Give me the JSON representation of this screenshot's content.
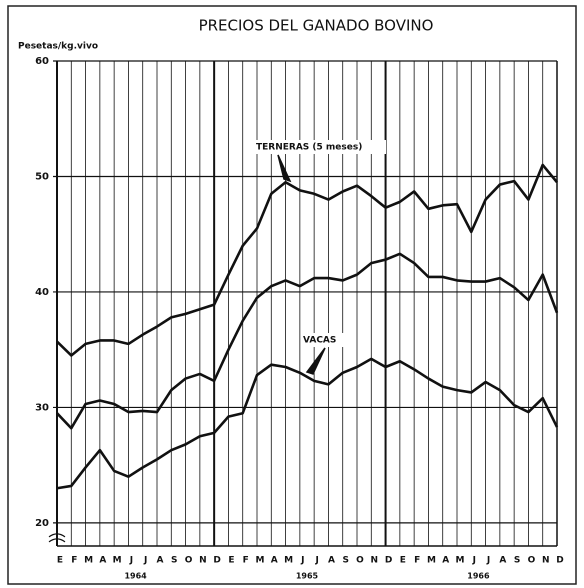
{
  "chart_data": {
    "type": "line",
    "title": "PRECIOS DEL GANADO BOVINO",
    "y_label": "Pesetas/kg.vivo",
    "categories": [
      "E",
      "F",
      "M",
      "A",
      "M",
      "J",
      "J",
      "A",
      "S",
      "O",
      "N",
      "D",
      "E",
      "F",
      "M",
      "A",
      "M",
      "J",
      "J",
      "A",
      "S",
      "O",
      "N",
      "D",
      "E",
      "F",
      "M",
      "A",
      "M",
      "J",
      "J",
      "A",
      "S",
      "O",
      "N",
      "D"
    ],
    "groups": [
      "1964",
      "1965",
      "1966"
    ],
    "series": [
      {
        "name": "TERNERAS (5 meses)",
        "color": "#111111",
        "values": [
          35.7,
          34.5,
          35.5,
          35.8,
          35.8,
          35.5,
          36.3,
          37,
          37.8,
          38.1,
          38.5,
          38.9,
          41.5,
          44,
          45.5,
          48.5,
          49.5,
          48.8,
          48.5,
          48,
          48.7,
          49.2,
          48.3,
          47.3,
          47.8,
          48.7,
          47.2,
          47.5,
          47.6,
          45.2,
          48,
          49.3,
          49.6,
          48,
          51,
          49.5
        ]
      },
      {
        "color": "#111111",
        "values": [
          29.5,
          28.2,
          30.3,
          30.6,
          30.3,
          29.6,
          29.7,
          29.6,
          31.5,
          32.5,
          32.9,
          32.3,
          35,
          37.5,
          39.5,
          40.5,
          41,
          40.5,
          41.2,
          41.2,
          41,
          41.5,
          42.5,
          42.8,
          43.3,
          42.5,
          41.3,
          41.3,
          41,
          40.9,
          40.9,
          41.2,
          40.4,
          39.3,
          41.5,
          38.2
        ]
      },
      {
        "name": "VACAS",
        "color": "#111111",
        "values": [
          23,
          23.2,
          24.8,
          26.3,
          24.5,
          24,
          24.8,
          25.5,
          26.3,
          26.8,
          27.5,
          27.8,
          29.2,
          29.5,
          32.8,
          33.7,
          33.5,
          33,
          32.3,
          32,
          33,
          33.5,
          34.2,
          33.5,
          34,
          33.3,
          32.5,
          31.8,
          31.5,
          31.3,
          32.2,
          31.5,
          30.2,
          29.6,
          30.8,
          28.3
        ]
      }
    ],
    "ylim": [
      18,
      60
    ],
    "yticks": [
      20,
      30,
      40,
      50,
      60
    ],
    "grid": true
  }
}
